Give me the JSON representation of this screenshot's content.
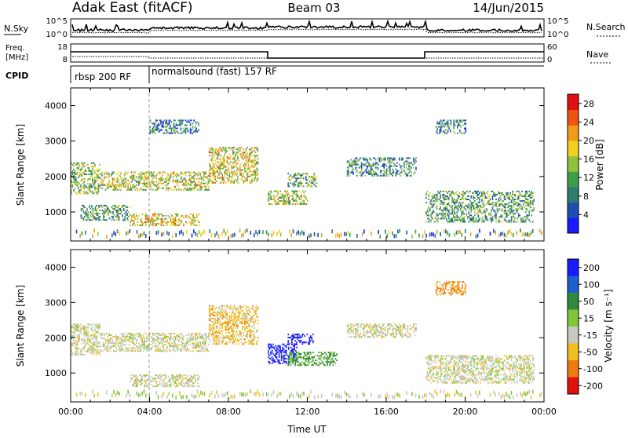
{
  "header": {
    "station": "Adak East (fitACF)",
    "beam": "Beam 03",
    "date": "14/Jun/2015"
  },
  "strip_labels": {
    "nsky": "N.Sky",
    "nsky_top": "10^5",
    "nsky_bottom": "10^0",
    "nsearch": "N.Search",
    "nsearch_top": "10^5",
    "nsearch_bottom": "10^0",
    "freq_line1": "Freq.",
    "freq_line2": "[MHz]",
    "freq_top": "18",
    "freq_bottom": "8",
    "nave": "Nave",
    "nave_top": "60",
    "nave_bottom": "0",
    "cpid": "CPID",
    "cpid_1": "rbsp 200 RF",
    "cpid_2": "normalsound (fast) 157 RF"
  },
  "chart_data": [
    {
      "type": "heatmap",
      "name": "power",
      "ylabel": "Slant Range [km]",
      "yticks": [
        "1000",
        "2000",
        "3000",
        "4000"
      ],
      "ylim": [
        180,
        4500
      ],
      "xlim": [
        0,
        24
      ],
      "colorbar_label": "Power [dB]",
      "colorbar_ticks": [
        "4",
        "8",
        "12",
        "16",
        "20",
        "24",
        "28"
      ],
      "colorbar_range": [
        0,
        30
      ],
      "colors": [
        "#1a1aff",
        "#1e4fb0",
        "#2e7d6e",
        "#3d9e4a",
        "#8fc23a",
        "#f0d020",
        "#f29a1a",
        "#ee5512",
        "#e01010"
      ],
      "echo_regions": [
        {
          "t": [
            0.0,
            1.5
          ],
          "r": [
            1500,
            2400
          ],
          "level": 0.45
        },
        {
          "t": [
            1.5,
            7.0
          ],
          "r": [
            1600,
            2100
          ],
          "level": 0.55
        },
        {
          "t": [
            7.0,
            9.5
          ],
          "r": [
            1800,
            2800
          ],
          "level": 0.6
        },
        {
          "t": [
            3.0,
            6.5
          ],
          "r": [
            600,
            950
          ],
          "level": 0.65
        },
        {
          "t": [
            0.5,
            3.0
          ],
          "r": [
            750,
            1200
          ],
          "level": 0.35
        },
        {
          "t": [
            10.0,
            12.0
          ],
          "r": [
            1200,
            1600
          ],
          "level": 0.55
        },
        {
          "t": [
            11.0,
            12.5
          ],
          "r": [
            1700,
            2100
          ],
          "level": 0.4
        },
        {
          "t": [
            14.0,
            17.5
          ],
          "r": [
            2000,
            2500
          ],
          "level": 0.3
        },
        {
          "t": [
            18.0,
            23.5
          ],
          "r": [
            700,
            1600
          ],
          "level": 0.35
        },
        {
          "t": [
            4.0,
            6.5
          ],
          "r": [
            3200,
            3600
          ],
          "level": 0.25
        },
        {
          "t": [
            18.5,
            20.0
          ],
          "r": [
            3200,
            3600
          ],
          "level": 0.25
        }
      ]
    },
    {
      "type": "heatmap",
      "name": "velocity",
      "xlabel": "Time UT",
      "ylabel": "Slant Range [km]",
      "xticks": [
        "00:00",
        "04:00",
        "08:00",
        "12:00",
        "16:00",
        "20:00",
        "00:00"
      ],
      "yticks": [
        "1000",
        "2000",
        "3000",
        "4000"
      ],
      "ylim": [
        180,
        4500
      ],
      "xlim": [
        0,
        24
      ],
      "colorbar_label": "Velocity [m s⁻¹]",
      "colorbar_ticks": [
        "200",
        "100",
        "50",
        "15",
        "-15",
        "-50",
        "-100",
        "-200"
      ],
      "colors": [
        "#1a1aff",
        "#1e5fd0",
        "#2e8a3a",
        "#7ec83a",
        "#c8c8c0",
        "#f0c020",
        "#f07a10",
        "#e01010"
      ],
      "echo_regions": [
        {
          "t": [
            0.0,
            1.5
          ],
          "r": [
            1500,
            2400
          ],
          "v": 0
        },
        {
          "t": [
            1.5,
            7.0
          ],
          "r": [
            1600,
            2100
          ],
          "v": 0
        },
        {
          "t": [
            7.0,
            9.5
          ],
          "r": [
            1800,
            2900
          ],
          "v": -30
        },
        {
          "t": [
            3.0,
            6.5
          ],
          "r": [
            600,
            950
          ],
          "v": 0
        },
        {
          "t": [
            10.0,
            11.5
          ],
          "r": [
            1250,
            1800
          ],
          "v": 200
        },
        {
          "t": [
            11.0,
            12.3
          ],
          "r": [
            1800,
            2100
          ],
          "v": 200
        },
        {
          "t": [
            11.0,
            13.5
          ],
          "r": [
            1200,
            1600
          ],
          "v": 40
        },
        {
          "t": [
            14.0,
            17.5
          ],
          "r": [
            2000,
            2400
          ],
          "v": 0
        },
        {
          "t": [
            18.0,
            23.5
          ],
          "r": [
            700,
            1500
          ],
          "v": 0
        },
        {
          "t": [
            18.5,
            20.0
          ],
          "r": [
            3200,
            3600
          ],
          "v": -60
        }
      ]
    }
  ]
}
